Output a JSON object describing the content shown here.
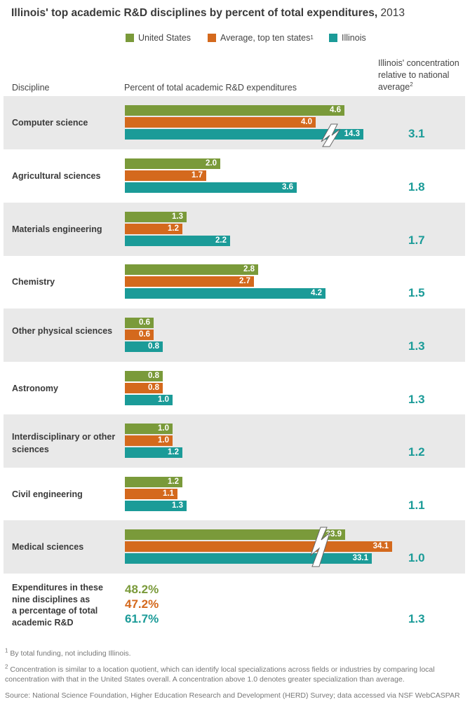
{
  "title_bold": "Illinois' top academic R&D disciplines by percent of total expenditures,",
  "title_year": "2013",
  "legend": [
    {
      "label": "United States",
      "sup": "",
      "color": "#7a9a3a"
    },
    {
      "label": "Average, top ten states",
      "sup": "1",
      "color": "#d4691d"
    },
    {
      "label": "Illinois",
      "sup": "",
      "color": "#1b9b98"
    }
  ],
  "headers": {
    "discipline": "Discipline",
    "percent": "Percent of total academic R&D expenditures",
    "concentration_line1": "Illinois' concentration",
    "concentration_line2": "relative to national",
    "concentration_line3": "average",
    "concentration_sup": "2"
  },
  "chart_data": {
    "type": "bar",
    "orientation": "horizontal",
    "categories": [
      "Computer science",
      "Agricultural sciences",
      "Materials engineering",
      "Chemistry",
      "Other physical sciences",
      "Astronomy",
      "Interdisciplinary or other sciences",
      "Civil engineering",
      "Medical sciences"
    ],
    "series": [
      {
        "name": "United States",
        "values": [
          4.6,
          2.0,
          1.3,
          2.8,
          0.6,
          0.8,
          1.0,
          1.2,
          33.9
        ]
      },
      {
        "name": "Average, top ten states",
        "values": [
          4.0,
          1.7,
          1.2,
          2.7,
          0.6,
          0.8,
          1.0,
          1.1,
          34.1
        ]
      },
      {
        "name": "Illinois",
        "values": [
          14.3,
          3.6,
          2.2,
          4.2,
          0.8,
          1.0,
          1.2,
          1.3,
          33.1
        ]
      }
    ],
    "value_labels": {
      "United States": [
        "4.6",
        "2.0",
        "1.3",
        "2.8",
        "0.6",
        "0.8",
        "1.0",
        "1.2",
        "33.9"
      ],
      "Average, top ten states": [
        "4.0",
        "1.7",
        "1.2",
        "2.7",
        "0.6",
        "0.8",
        "1.0",
        "1.1",
        "34.1"
      ],
      "Illinois": [
        "14.3",
        "3.6",
        "2.2",
        "4.2",
        "0.8",
        "1.0",
        "1.2",
        "1.3",
        "33.1"
      ]
    },
    "broken_axis_bars": [
      "Computer science / Illinois",
      "Medical sciences"
    ],
    "concentration": [
      "3.1",
      "1.8",
      "1.7",
      "1.5",
      "1.3",
      "1.3",
      "1.2",
      "1.1",
      "1.0"
    ],
    "xlabel": "Percent of total academic R&D expenditures",
    "ylabel": "Discipline"
  },
  "summary": {
    "label_lines": [
      "Expenditures in these",
      "nine disciplines as",
      "a percentage of total",
      "academic R&D"
    ],
    "values": [
      {
        "text": "48.2%",
        "color": "#7a9a3a"
      },
      {
        "text": "47.2%",
        "color": "#d4691d"
      },
      {
        "text": "61.7%",
        "color": "#1b9b98"
      }
    ],
    "concentration": "1.3"
  },
  "notes": {
    "note1_sup": "1",
    "note1": "By total funding, not including Illinois.",
    "note2_sup": "2",
    "note2": "Concentration is similar to a location quotient, which can identify local specializations across fields or industries by comparing local concentration with that in the United States overall. A concentration above 1.0 denotes greater specialization than average.",
    "source": "Source: National Science Foundation, Higher Education Research and Development (HERD) Survey; data accessed via NSF WebCASPAR"
  }
}
